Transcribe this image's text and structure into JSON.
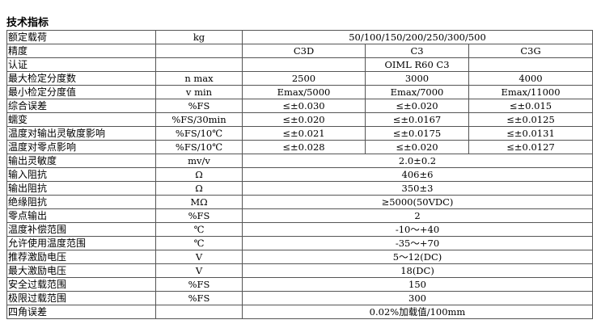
{
  "title": "技术指标",
  "rows": [
    {
      "label": "额定载荷",
      "unit": "kg",
      "span": "50/100/150/200/250/300/500"
    },
    {
      "label": "精度",
      "unit": "",
      "values": [
        "C3D",
        "C3",
        "C3G"
      ]
    },
    {
      "label": "认证",
      "unit": "",
      "values": [
        "",
        "OIML R60 C3",
        ""
      ]
    },
    {
      "label": "最大检定分度数",
      "unit": "n max",
      "values": [
        "2500",
        "3000",
        "4000"
      ]
    },
    {
      "label": "最小检定分度值",
      "unit": "v min",
      "values": [
        "Emax/5000",
        "Emax/7000",
        "Emax/11000"
      ]
    },
    {
      "label": "综合误差",
      "unit": "%FS",
      "values": [
        "≤±0.030",
        "≤±0.020",
        "≤±0.015"
      ]
    },
    {
      "label": "蠕变",
      "unit": "%FS/30min",
      "values": [
        "≤±0.020",
        "≤±0.0167",
        "≤±0.0125"
      ]
    },
    {
      "label": "温度对输出灵敏度影响",
      "unit": "%FS/10℃",
      "values": [
        "≤±0.021",
        "≤±0.0175",
        "≤±0.0131"
      ]
    },
    {
      "label": "温度对零点影响",
      "unit": "%FS/10℃",
      "values": [
        "≤±0.028",
        "≤±0.020",
        "≤±0.0127"
      ]
    },
    {
      "label": "输出灵敏度",
      "unit": "mv/v",
      "span": "2.0±0.2"
    },
    {
      "label": "输入阻抗",
      "unit": "Ω",
      "span": "406±6"
    },
    {
      "label": "输出阻抗",
      "unit": "Ω",
      "span": "350±3"
    },
    {
      "label": "绝缘阻抗",
      "unit": "MΩ",
      "span": "≥5000(50VDC)"
    },
    {
      "label": "零点输出",
      "unit": "%FS",
      "span": "2"
    },
    {
      "label": "温度补偿范围",
      "unit": "℃",
      "span": "-10～+40"
    },
    {
      "label": "允许使用温度范围",
      "unit": "℃",
      "span": "-35～+70"
    },
    {
      "label": "推荐激励电压",
      "unit": "V",
      "span": "5～12(DC)"
    },
    {
      "label": "最大激励电压",
      "unit": "V",
      "span": "18(DC)"
    },
    {
      "label": "安全过载范围",
      "unit": "%FS",
      "span": "150"
    },
    {
      "label": "极限过载范围",
      "unit": "%FS",
      "span": "300"
    },
    {
      "label": "四角误差",
      "unit": "",
      "span": "0.02%加载值/100mm"
    }
  ]
}
